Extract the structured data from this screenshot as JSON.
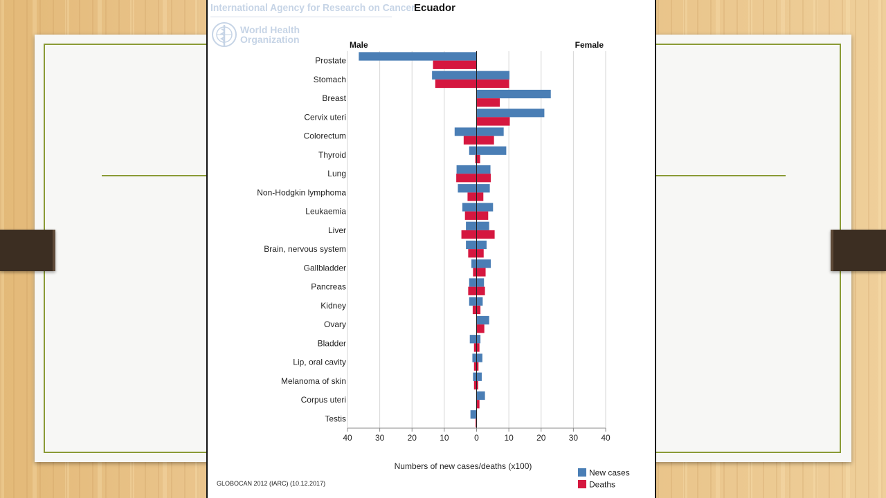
{
  "slide": {
    "colors": {
      "card_border": "#8a9a35",
      "tab": "#3c2e22"
    }
  },
  "header": {
    "agency": "International Agency for Research on Cancer",
    "country": "Ecuador",
    "who_line1": "World Health",
    "who_line2": "Organization",
    "logo_icon": "who-emblem-icon"
  },
  "footer": {
    "source": "GLOBOCAN 2012 (IARC) (10.12.2017)"
  },
  "chart_data": {
    "type": "bar",
    "orientation": "horizontal",
    "layout": "population-pyramid",
    "left_label": "Male",
    "right_label": "Female",
    "xlabel": "Numbers of new cases/deaths (x100)",
    "xlim": [
      -40,
      40
    ],
    "x_ticks": [
      40,
      30,
      20,
      10,
      0,
      10,
      20,
      30,
      40
    ],
    "grid": true,
    "legend_position": "bottom-right",
    "categories": [
      "Prostate",
      "Stomach",
      "Breast",
      "Cervix uteri",
      "Colorectum",
      "Thyroid",
      "Lung",
      "Non-Hodgkin lymphoma",
      "Leukaemia",
      "Liver",
      "Brain, nervous system",
      "Gallbladder",
      "Pancreas",
      "Kidney",
      "Ovary",
      "Bladder",
      "Lip, oral cavity",
      "Melanoma of skin",
      "Corpus uteri",
      "Testis"
    ],
    "series": [
      {
        "name": "New cases",
        "color": "#4a7eb5",
        "male": [
          36.5,
          13.8,
          0,
          0,
          6.8,
          2.3,
          6.2,
          5.8,
          4.4,
          3.3,
          3.3,
          1.6,
          2.3,
          2.3,
          0,
          2.1,
          1.3,
          1.1,
          0,
          1.9
        ],
        "female": [
          0,
          10.2,
          23.0,
          21.0,
          8.4,
          9.2,
          4.3,
          4.1,
          5.1,
          3.9,
          3.1,
          4.4,
          2.3,
          1.9,
          3.9,
          1.2,
          1.8,
          1.6,
          2.6,
          0
        ]
      },
      {
        "name": "Deaths",
        "color": "#d5173f",
        "male": [
          13.5,
          12.8,
          0,
          0,
          4.0,
          0.4,
          6.3,
          2.8,
          3.6,
          4.7,
          2.6,
          1.1,
          2.6,
          1.2,
          0,
          0.8,
          0.8,
          0.8,
          0,
          0.3
        ],
        "female": [
          0,
          10.1,
          7.2,
          10.3,
          5.4,
          1.1,
          4.4,
          2.1,
          3.6,
          5.6,
          2.2,
          2.8,
          2.6,
          1.2,
          2.4,
          0.9,
          0.6,
          0.5,
          0.9,
          0
        ]
      }
    ]
  }
}
